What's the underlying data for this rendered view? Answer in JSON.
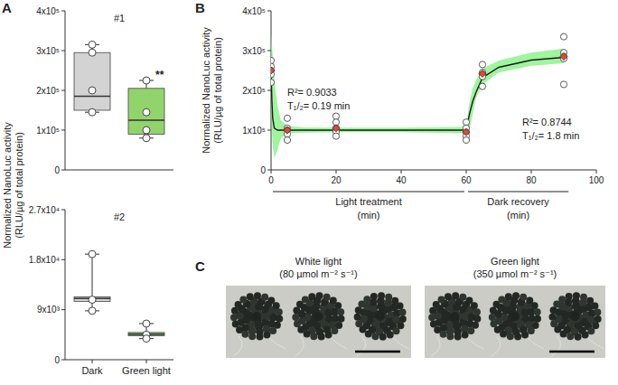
{
  "chart_data": [
    {
      "type": "box",
      "panel_label": "A",
      "annotation": "#1",
      "ylabel": [
        "Normalized NanoLuc activity",
        "(RLU/µg of total protein)"
      ],
      "tick_labels": "y",
      "colors": [
        "#d3d3d3",
        "#92d46c"
      ],
      "ylim": [
        0,
        400000
      ],
      "yticks": [
        0,
        {
          "value": 100000,
          "label": "1x10⁵"
        },
        {
          "value": 200000,
          "label": "2x10⁵"
        },
        {
          "value": 300000,
          "label": "3x10⁵"
        },
        {
          "value": 400000,
          "label": "4x10⁵"
        }
      ],
      "boxes": [
        {
          "min": 145000,
          "q1": 150000,
          "median": 185000,
          "q3": 295000,
          "max": 315000,
          "points": [
            315000,
            295000,
            200000,
            145000
          ]
        },
        {
          "min": 80000,
          "q1": 90000,
          "median": 125000,
          "q3": 205000,
          "max": 225000,
          "points": [
            225000,
            145000,
            100000,
            80000
          ],
          "label": "**"
        }
      ]
    },
    {
      "type": "box",
      "annotation": "#2",
      "categories": [
        "Dark",
        "Green light"
      ],
      "colors": [
        "#d3d3d3",
        "#92d46c"
      ],
      "ylim": [
        0,
        27000
      ],
      "yticks": [
        0,
        {
          "value": 9000,
          "label": "9x10³"
        },
        {
          "value": 18000,
          "label": "1.8x10⁴"
        },
        {
          "value": 27000,
          "label": "2.7x10⁴"
        }
      ],
      "boxes": [
        {
          "min": 8800,
          "q1": 10500,
          "median": 11000,
          "q3": 11300,
          "max": 19000,
          "points": [
            19000,
            10800,
            8800
          ]
        },
        {
          "min": 3800,
          "q1": 4300,
          "median": 4600,
          "q3": 4900,
          "max": 6500,
          "points": [
            6500,
            4500,
            3800
          ]
        }
      ]
    },
    {
      "type": "scatter",
      "panel_label": "B",
      "ylabel": [
        "Normalized NanoLuc activity",
        "(RLU/µg of total protein)"
      ],
      "xlim": [
        0,
        100
      ],
      "xticks": [
        0,
        20,
        40,
        60,
        80,
        100
      ],
      "ylim": [
        0,
        400000
      ],
      "yticks": [
        0,
        {
          "value": 100000,
          "label": "1x10⁵"
        },
        {
          "value": 200000,
          "label": "2x10⁵"
        },
        {
          "value": 300000,
          "label": "3x10⁵"
        },
        {
          "value": 400000,
          "label": "4x10⁵"
        }
      ],
      "series": [
        {
          "type": "band",
          "color": "#7ef27e",
          "x": [
            0,
            0.5,
            1,
            2,
            3,
            5,
            10,
            20,
            40,
            60,
            61,
            62,
            63,
            65,
            70,
            80,
            90
          ],
          "lower": [
            150000,
            60000,
            30000,
            50000,
            80000,
            92000,
            94000,
            95000,
            95000,
            92000,
            100000,
            140000,
            180000,
            215000,
            245000,
            262000,
            268000
          ],
          "upper": [
            345000,
            290000,
            230000,
            160000,
            125000,
            110000,
            107000,
            106000,
            106000,
            108000,
            170000,
            205000,
            225000,
            255000,
            275000,
            295000,
            305000
          ]
        },
        {
          "type": "line",
          "color": "#1a1a1a",
          "x": [
            0,
            0.25,
            0.5,
            1,
            2,
            3,
            5,
            20,
            40,
            60,
            61,
            62,
            63,
            65,
            70,
            80,
            90
          ],
          "values": [
            250000,
            175000,
            130000,
            105000,
            100000,
            100000,
            100000,
            100000,
            100000,
            100000,
            140000,
            172000,
            195000,
            232000,
            258000,
            276000,
            283000
          ]
        },
        {
          "type": "scatter",
          "marker": "circle",
          "color": "#ffffff",
          "x": [
            0,
            0,
            0,
            0,
            0,
            5,
            5,
            5,
            5,
            5,
            20,
            20,
            20,
            20,
            20,
            60,
            60,
            60,
            60,
            60,
            65,
            65,
            65,
            65,
            65,
            90,
            90,
            90,
            90,
            90
          ],
          "values": [
            275000,
            260000,
            250000,
            240000,
            220000,
            130000,
            105000,
            100000,
            90000,
            75000,
            135000,
            120000,
            105000,
            95000,
            85000,
            120000,
            105000,
            95000,
            85000,
            75000,
            265000,
            245000,
            240000,
            235000,
            210000,
            335000,
            295000,
            285000,
            280000,
            215000
          ]
        },
        {
          "type": "scatter",
          "marker": "diamond",
          "color": "#e8452c",
          "x": [
            0,
            5,
            20,
            60,
            65,
            90
          ],
          "values": [
            250000,
            100000,
            105000,
            95000,
            242000,
            285000
          ]
        }
      ],
      "fit_labels": [
        [
          "R²= 0.9033",
          "T₁/₂= 0.19 min"
        ],
        [
          "R²= 0.8744",
          "T₁/₂= 1.8 min"
        ]
      ],
      "periods": [
        {
          "label": "Light treatment",
          "unit": "(min)",
          "x": [
            0,
            60
          ]
        },
        {
          "label": "Dark recovery",
          "unit": "(min)",
          "x": [
            60,
            92
          ]
        }
      ]
    }
  ],
  "images": {
    "panel_label": "C",
    "items": [
      {
        "title": "White light",
        "subtitle": "(80 µmol m⁻² s⁻¹)"
      },
      {
        "title": "Green light",
        "subtitle": "(350 µmol m⁻² s⁻¹)"
      }
    ]
  }
}
